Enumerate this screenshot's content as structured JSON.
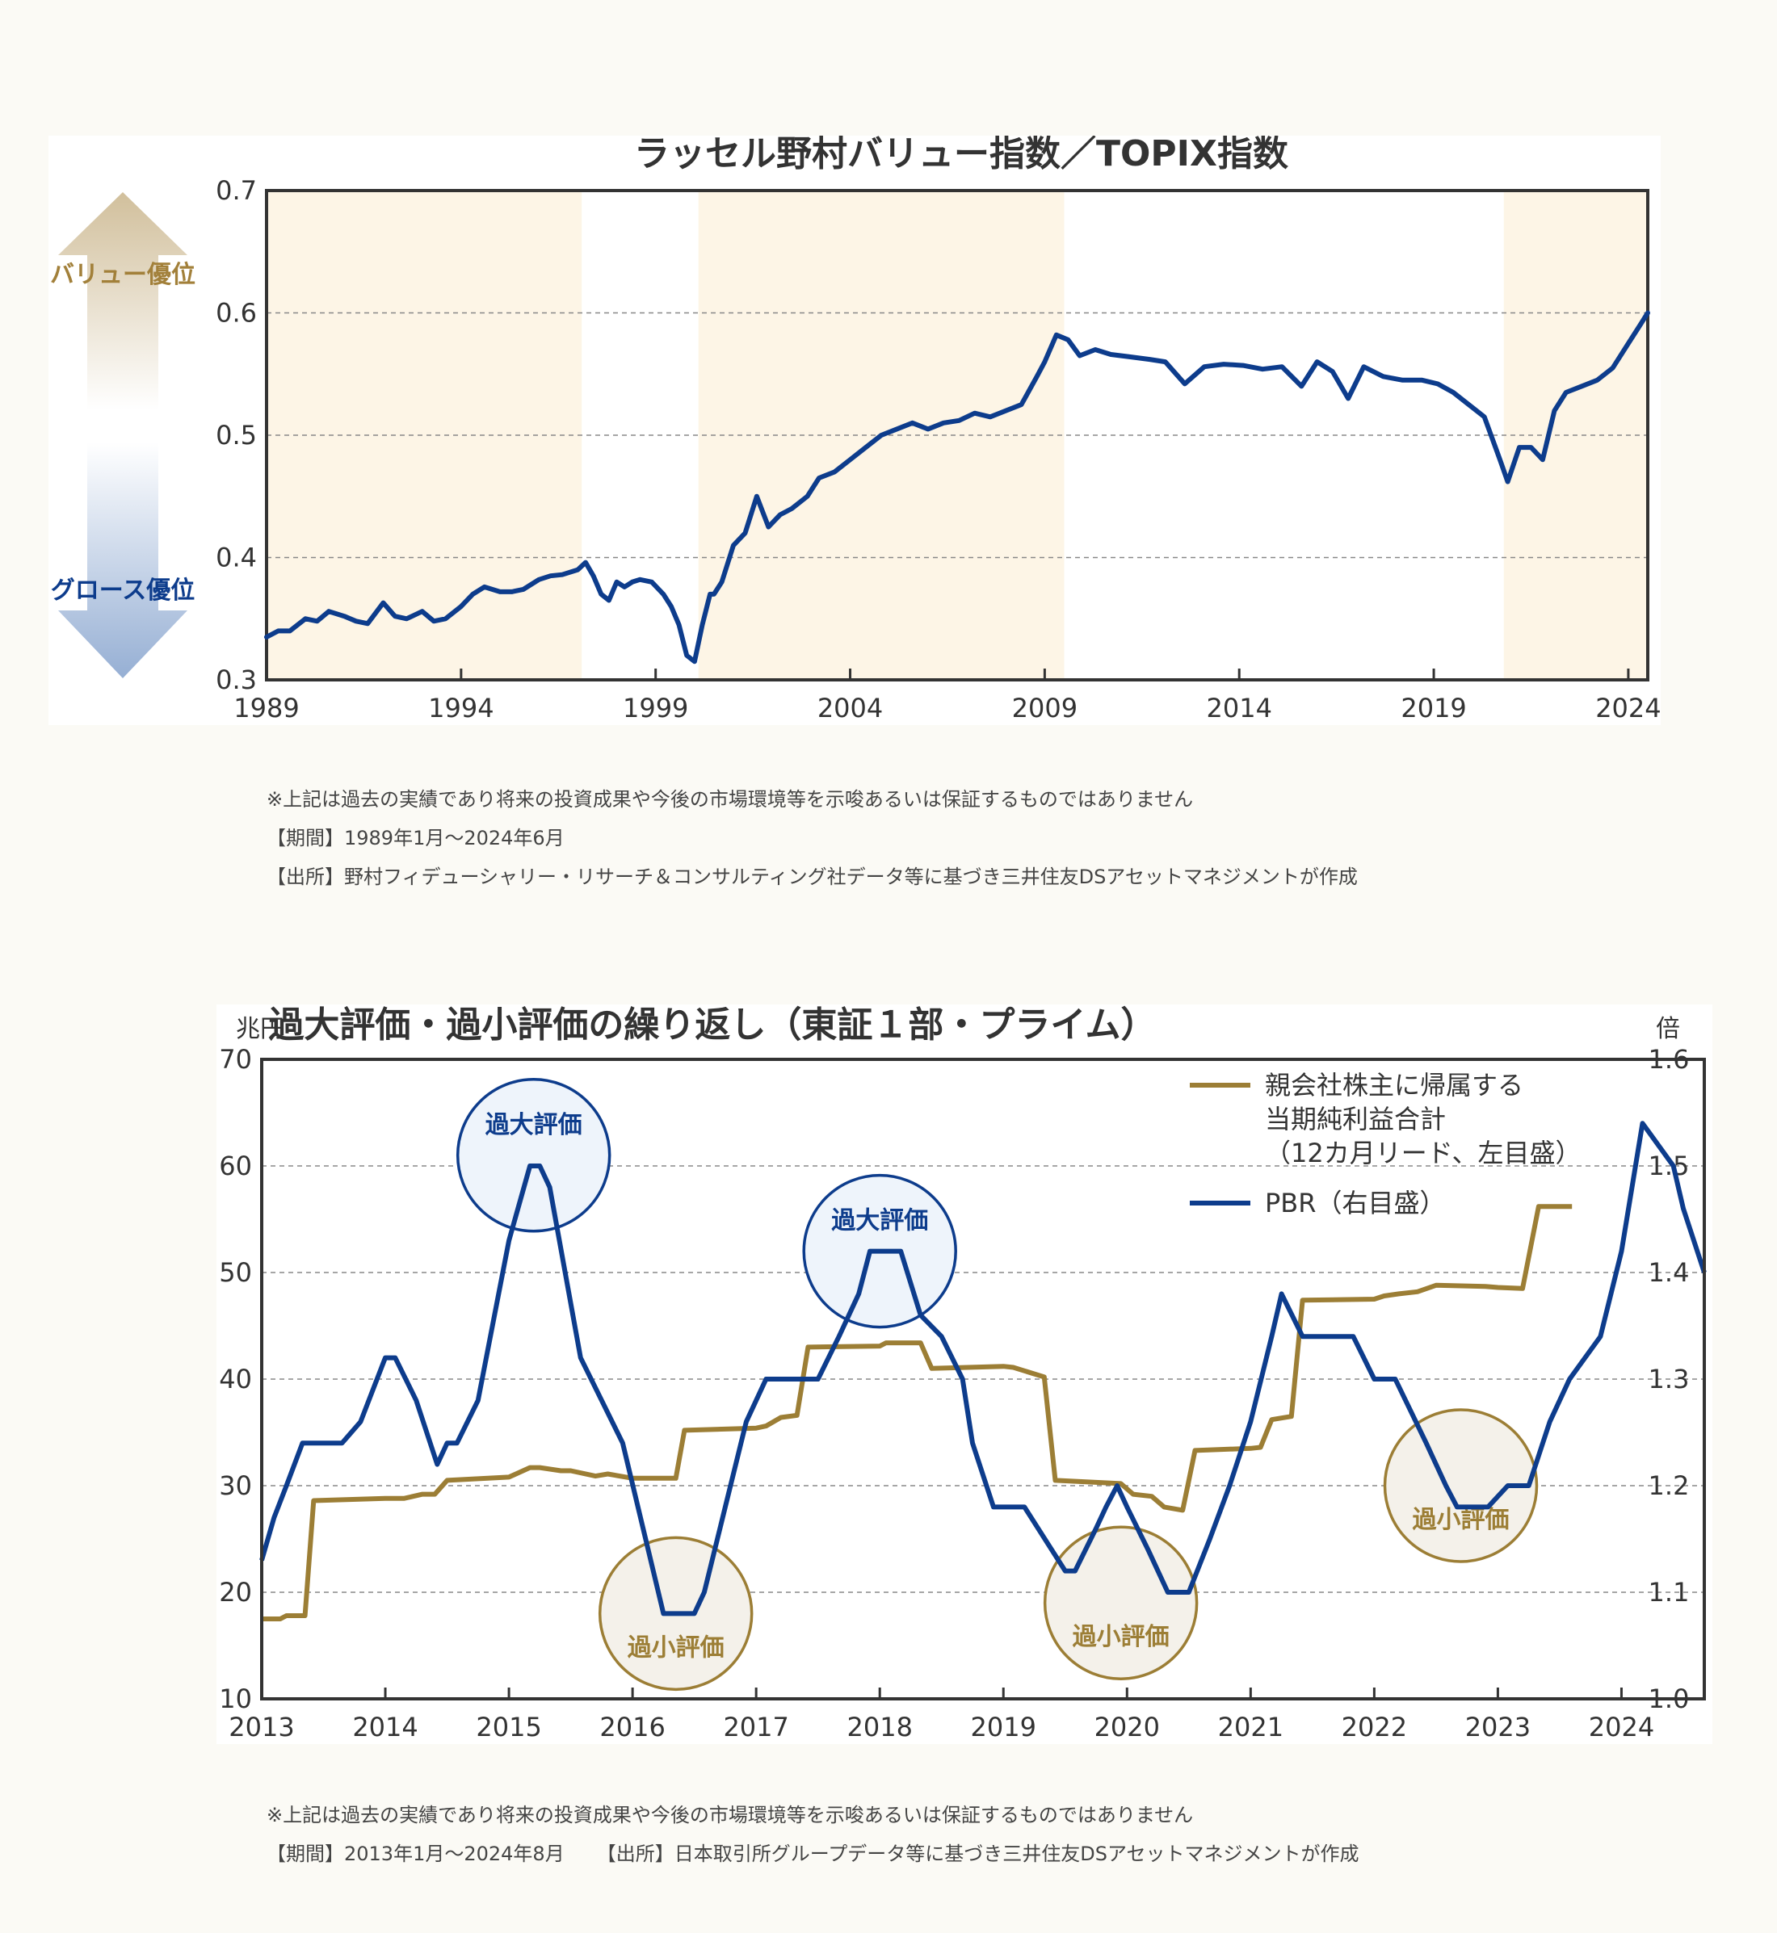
{
  "chart1": {
    "title": "ラッセル野村バリュー指数／TOPIX指数",
    "arrow_up_label": "バリュー優位",
    "arrow_down_label": "グロース優位",
    "colors": {
      "line": "#0d3c8c",
      "band": "#fdf5e6",
      "arrow_up": "#c9b48a",
      "arrow_down": "#8aa6cf",
      "up_label": "#a2803a",
      "down_label": "#0d3c8c"
    },
    "notes": [
      "※上記は過去の実績であり将来の投資成果や今後の市場環境等を示唆あるいは保証するものではありません",
      "【期間】1989年1月〜2024年6月",
      "【出所】野村フィデューシャリー・リサーチ＆コンサルティング社データ等に基づき三井住友DSアセットマネジメントが作成"
    ]
  },
  "chart2": {
    "title": "過大評価・過小評価の繰り返し（東証１部・プライム）",
    "left_unit": "兆円",
    "right_unit": "倍",
    "legend": {
      "earnings_lines": [
        "親会社株主に帰属する",
        "当期純利益合計",
        "（12カ月リード、左目盛）"
      ],
      "pbr": "PBR（右目盛）"
    },
    "over_label": "過大評価",
    "under_label": "過小評価",
    "colors": {
      "earnings": "#9c7e35",
      "pbr": "#0d3c8c",
      "over_fill": "#eef4fb",
      "under_fill": "#f4f1ea"
    },
    "notes": [
      "※上記は過去の実績であり将来の投資成果や今後の市場環境等を示唆あるいは保証するものではありません",
      "【期間】2013年1月〜2024年8月",
      "【出所】日本取引所グループデータ等に基づき三井住友DSアセットマネジメントが作成"
    ]
  },
  "chart_data": [
    {
      "type": "line",
      "title": "ラッセル野村バリュー指数／TOPIX指数",
      "xlim": [
        1989,
        2024.5
      ],
      "ylim": [
        0.3,
        0.7
      ],
      "x_ticks": [
        1989,
        1994,
        1999,
        2004,
        2009,
        2014,
        2019,
        2024
      ],
      "y_ticks": [
        0.3,
        0.4,
        0.5,
        0.6,
        0.7
      ],
      "grid": "dashed horizontal at 0.4, 0.5, 0.6",
      "shaded_periods": [
        [
          1989,
          1997.1
        ],
        [
          2000.1,
          2009.5
        ],
        [
          2020.8,
          2024.5
        ]
      ],
      "series": [
        {
          "x": [
            1989.0,
            1989.3,
            1989.6,
            1990.0,
            1990.3,
            1990.6,
            1991.0,
            1991.3,
            1991.6,
            1992.0,
            1992.3,
            1992.6,
            1993.0,
            1993.3,
            1993.6,
            1994.0,
            1994.3,
            1994.6,
            1995.0,
            1995.3,
            1995.6,
            1996.0,
            1996.3,
            1996.6,
            1997.0,
            1997.2,
            1997.4,
            1997.6,
            1997.8,
            1998.0,
            1998.2,
            1998.4,
            1998.6,
            1998.9,
            1999.2,
            1999.4,
            1999.6,
            1999.8,
            2000.0,
            2000.2,
            2000.4,
            2000.5,
            2000.7,
            2001.0,
            2001.3,
            2001.6,
            2001.9,
            2002.2,
            2002.5,
            2002.9,
            2003.2,
            2003.6,
            2004.0,
            2004.4,
            2004.8,
            2005.2,
            2005.6,
            2006.0,
            2006.4,
            2006.8,
            2007.2,
            2007.6,
            2008.0,
            2008.4,
            2008.8,
            2009.0,
            2009.3,
            2009.6,
            2009.9,
            2010.3,
            2010.7,
            2011.2,
            2011.7,
            2012.1,
            2012.6,
            2013.1,
            2013.6,
            2014.1,
            2014.6,
            2015.1,
            2015.6,
            2016.0,
            2016.4,
            2016.8,
            2017.2,
            2017.7,
            2018.2,
            2018.7,
            2019.1,
            2019.5,
            2019.9,
            2020.3,
            2020.7,
            2020.9,
            2021.2,
            2021.5,
            2021.8,
            2022.1,
            2022.4,
            2022.8,
            2023.2,
            2023.6,
            2024.0,
            2024.3,
            2024.5
          ],
          "values": [
            0.335,
            0.34,
            0.34,
            0.35,
            0.348,
            0.356,
            0.352,
            0.348,
            0.346,
            0.363,
            0.352,
            0.35,
            0.356,
            0.348,
            0.35,
            0.36,
            0.37,
            0.376,
            0.372,
            0.372,
            0.374,
            0.382,
            0.385,
            0.386,
            0.39,
            0.396,
            0.385,
            0.37,
            0.365,
            0.38,
            0.376,
            0.38,
            0.382,
            0.38,
            0.37,
            0.36,
            0.345,
            0.32,
            0.315,
            0.345,
            0.37,
            0.37,
            0.38,
            0.41,
            0.42,
            0.45,
            0.425,
            0.435,
            0.44,
            0.45,
            0.465,
            0.47,
            0.48,
            0.49,
            0.5,
            0.505,
            0.51,
            0.505,
            0.51,
            0.512,
            0.518,
            0.515,
            0.52,
            0.525,
            0.548,
            0.56,
            0.582,
            0.578,
            0.565,
            0.57,
            0.566,
            0.564,
            0.562,
            0.56,
            0.542,
            0.556,
            0.558,
            0.557,
            0.554,
            0.556,
            0.54,
            0.56,
            0.552,
            0.53,
            0.556,
            0.548,
            0.545,
            0.545,
            0.542,
            0.535,
            0.525,
            0.515,
            0.48,
            0.462,
            0.49,
            0.49,
            0.48,
            0.52,
            0.535,
            0.54,
            0.545,
            0.555,
            0.575,
            0.59,
            0.6
          ]
        }
      ]
    },
    {
      "type": "line",
      "title": "過大評価・過小評価の繰り返し（東証１部・プライム）",
      "xlim": [
        2013,
        2024.67
      ],
      "x_ticks": [
        2013,
        2014,
        2015,
        2016,
        2017,
        2018,
        2019,
        2020,
        2021,
        2022,
        2023,
        2024
      ],
      "y_left": {
        "unit": "兆円",
        "lim": [
          10,
          70
        ],
        "ticks": [
          10,
          20,
          30,
          40,
          50,
          60,
          70
        ]
      },
      "y_right": {
        "unit": "倍",
        "lim": [
          1.0,
          1.6
        ],
        "ticks": [
          1.0,
          1.1,
          1.2,
          1.3,
          1.4,
          1.5,
          1.6
        ]
      },
      "grid": "dashed horizontal",
      "annotations": [
        {
          "label": "過大評価",
          "x": 2015.2,
          "y_right": 1.51
        },
        {
          "label": "過小評価",
          "x": 2016.35,
          "y_right": 1.08
        },
        {
          "label": "過大評価",
          "x": 2018.0,
          "y_right": 1.42
        },
        {
          "label": "過小評価",
          "x": 2019.95,
          "y_right": 1.09
        },
        {
          "label": "過小評価",
          "x": 2022.7,
          "y_right": 1.2
        }
      ],
      "series": [
        {
          "name": "親会社株主に帰属する当期純利益合計（12カ月リード、左目盛）",
          "axis": "left",
          "x": [
            2013.0,
            2013.15,
            2013.2,
            2013.35,
            2013.42,
            2014.0,
            2014.15,
            2014.3,
            2014.4,
            2014.5,
            2015.0,
            2015.17,
            2015.25,
            2015.42,
            2015.5,
            2015.7,
            2015.8,
            2016.0,
            2016.17,
            2016.25,
            2016.35,
            2016.42,
            2017.0,
            2017.08,
            2017.2,
            2017.33,
            2017.42,
            2018.0,
            2018.05,
            2018.33,
            2018.42,
            2019.0,
            2019.08,
            2019.33,
            2019.42,
            2019.95,
            2020.05,
            2020.2,
            2020.3,
            2020.45,
            2020.55,
            2021.0,
            2021.08,
            2021.17,
            2021.33,
            2021.42,
            2022.0,
            2022.08,
            2022.2,
            2022.35,
            2022.5,
            2022.9,
            2023.0,
            2023.2,
            2023.33,
            2023.6
          ],
          "values": [
            17.5,
            17.5,
            17.8,
            17.8,
            28.6,
            28.8,
            28.8,
            29.2,
            29.2,
            30.5,
            30.8,
            31.7,
            31.7,
            31.4,
            31.4,
            30.9,
            31.1,
            30.7,
            30.7,
            30.7,
            30.7,
            35.2,
            35.4,
            35.6,
            36.4,
            36.6,
            43.0,
            43.1,
            43.4,
            43.4,
            41.0,
            41.2,
            41.1,
            40.2,
            30.5,
            30.2,
            29.2,
            29.0,
            28.0,
            27.7,
            33.3,
            33.5,
            33.6,
            36.2,
            36.5,
            47.4,
            47.5,
            47.8,
            48.0,
            48.2,
            48.8,
            48.7,
            48.6,
            48.5,
            56.2,
            56.2
          ]
        },
        {
          "name": "PBR（右目盛）",
          "axis": "right",
          "x": [
            2013.0,
            2013.1,
            2013.2,
            2013.33,
            2013.55,
            2013.65,
            2013.8,
            2014.0,
            2014.08,
            2014.25,
            2014.42,
            2014.5,
            2014.58,
            2014.75,
            2015.0,
            2015.17,
            2015.25,
            2015.33,
            2015.58,
            2015.75,
            2015.92,
            2016.25,
            2016.5,
            2016.58,
            2016.75,
            2016.92,
            2017.08,
            2017.5,
            2017.67,
            2017.83,
            2017.92,
            2018.17,
            2018.33,
            2018.5,
            2018.67,
            2018.75,
            2018.92,
            2019.17,
            2019.5,
            2019.58,
            2019.75,
            2019.83,
            2019.92,
            2020.0,
            2020.17,
            2020.33,
            2020.5,
            2020.67,
            2020.83,
            2021.0,
            2021.17,
            2021.25,
            2021.42,
            2021.83,
            2022.0,
            2022.17,
            2022.42,
            2022.58,
            2022.67,
            2022.83,
            2022.92,
            2023.08,
            2023.25,
            2023.42,
            2023.58,
            2023.83,
            2024.0,
            2024.17,
            2024.42,
            2024.5,
            2024.67
          ],
          "values": [
            1.13,
            1.17,
            1.2,
            1.24,
            1.24,
            1.24,
            1.26,
            1.32,
            1.32,
            1.28,
            1.22,
            1.24,
            1.24,
            1.28,
            1.43,
            1.5,
            1.5,
            1.48,
            1.32,
            1.28,
            1.24,
            1.08,
            1.08,
            1.1,
            1.18,
            1.26,
            1.3,
            1.3,
            1.34,
            1.38,
            1.42,
            1.42,
            1.36,
            1.34,
            1.3,
            1.24,
            1.18,
            1.18,
            1.12,
            1.12,
            1.16,
            1.18,
            1.2,
            1.18,
            1.14,
            1.1,
            1.1,
            1.15,
            1.2,
            1.26,
            1.34,
            1.38,
            1.34,
            1.34,
            1.3,
            1.3,
            1.24,
            1.2,
            1.18,
            1.18,
            1.18,
            1.2,
            1.2,
            1.26,
            1.3,
            1.34,
            1.42,
            1.54,
            1.5,
            1.46,
            1.4
          ]
        }
      ]
    }
  ]
}
